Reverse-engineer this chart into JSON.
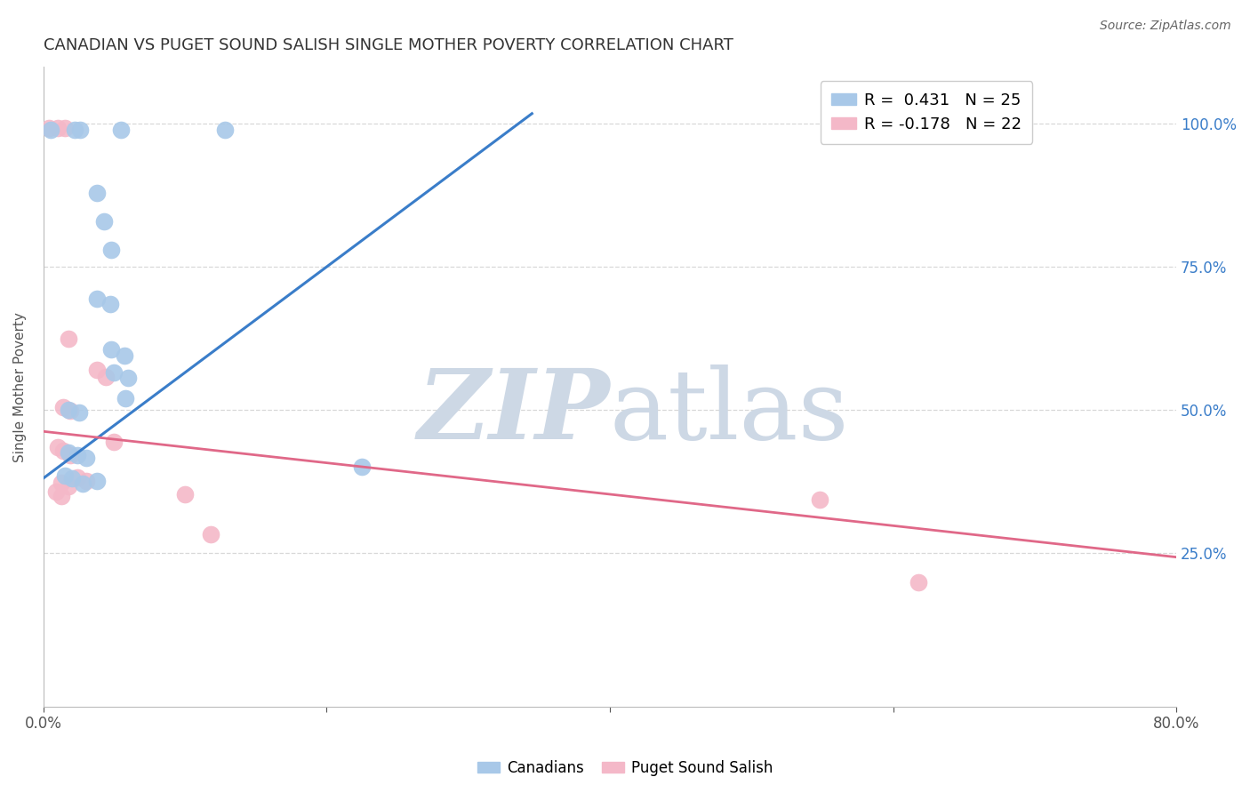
{
  "title": "CANADIAN VS PUGET SOUND SALISH SINGLE MOTHER POVERTY CORRELATION CHART",
  "source": "Source: ZipAtlas.com",
  "ylabel": "Single Mother Poverty",
  "right_yticks": [
    "25.0%",
    "50.0%",
    "75.0%",
    "100.0%"
  ],
  "right_ytick_vals": [
    0.25,
    0.5,
    0.75,
    1.0
  ],
  "xlim": [
    0.0,
    0.8
  ],
  "ylim": [
    -0.02,
    1.1
  ],
  "grid_color": "#d8d8d8",
  "background_color": "#ffffff",
  "canadians_color": "#a8c8e8",
  "puget_color": "#f4b8c8",
  "canadians_line_color": "#3a7dc9",
  "puget_line_color": "#e06888",
  "canadians_scatter": [
    [
      0.005,
      0.99
    ],
    [
      0.022,
      0.99
    ],
    [
      0.026,
      0.99
    ],
    [
      0.055,
      0.99
    ],
    [
      0.128,
      0.99
    ],
    [
      0.038,
      0.88
    ],
    [
      0.043,
      0.83
    ],
    [
      0.048,
      0.78
    ],
    [
      0.038,
      0.695
    ],
    [
      0.047,
      0.685
    ],
    [
      0.048,
      0.605
    ],
    [
      0.057,
      0.595
    ],
    [
      0.018,
      0.5
    ],
    [
      0.025,
      0.495
    ],
    [
      0.05,
      0.565
    ],
    [
      0.06,
      0.555
    ],
    [
      0.058,
      0.52
    ],
    [
      0.018,
      0.425
    ],
    [
      0.024,
      0.42
    ],
    [
      0.03,
      0.415
    ],
    [
      0.015,
      0.385
    ],
    [
      0.02,
      0.38
    ],
    [
      0.028,
      0.37
    ],
    [
      0.038,
      0.375
    ],
    [
      0.225,
      0.4
    ]
  ],
  "puget_scatter": [
    [
      0.004,
      0.993
    ],
    [
      0.01,
      0.993
    ],
    [
      0.015,
      0.993
    ],
    [
      0.018,
      0.625
    ],
    [
      0.038,
      0.57
    ],
    [
      0.044,
      0.558
    ],
    [
      0.014,
      0.505
    ],
    [
      0.019,
      0.498
    ],
    [
      0.01,
      0.435
    ],
    [
      0.014,
      0.428
    ],
    [
      0.019,
      0.42
    ],
    [
      0.024,
      0.382
    ],
    [
      0.03,
      0.375
    ],
    [
      0.013,
      0.372
    ],
    [
      0.018,
      0.366
    ],
    [
      0.009,
      0.356
    ],
    [
      0.013,
      0.349
    ],
    [
      0.05,
      0.444
    ],
    [
      0.1,
      0.352
    ],
    [
      0.118,
      0.282
    ],
    [
      0.548,
      0.342
    ],
    [
      0.618,
      0.198
    ]
  ],
  "canadians_line_x": [
    0.0,
    0.345
  ],
  "canadians_line_y_intercept": 0.38,
  "canadians_line_slope": 1.85,
  "puget_line_x": [
    0.0,
    0.8
  ],
  "puget_line_y_intercept": 0.462,
  "puget_line_slope": -0.275
}
